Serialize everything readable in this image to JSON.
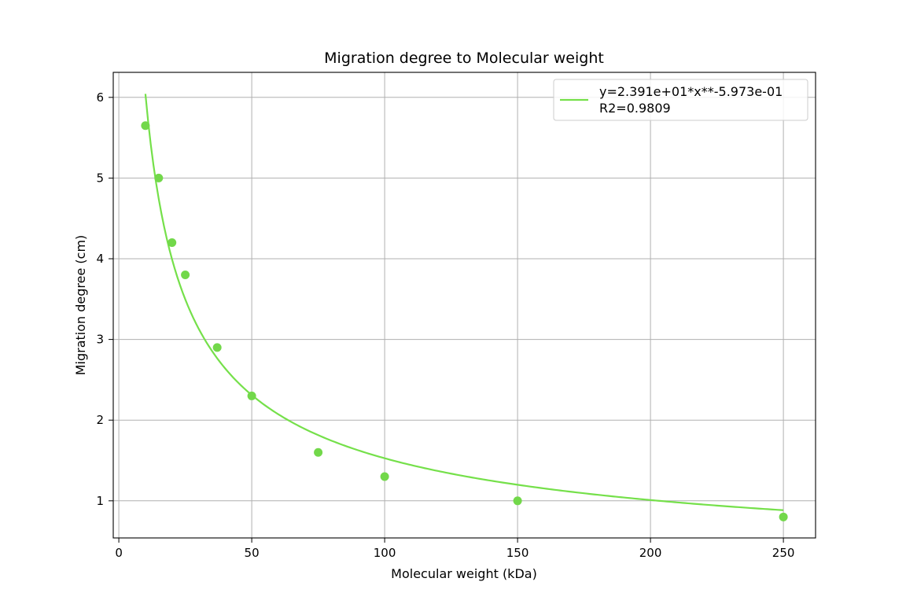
{
  "chart_data": {
    "type": "scatter",
    "title": "Migration degree to Molecular weight",
    "xlabel": "Molecular weight (kDa)",
    "ylabel": "Migration degree (cm)",
    "xlim": [
      -2.1,
      262.1
    ],
    "ylim": [
      0.54,
      6.31
    ],
    "xticks": [
      0,
      50,
      100,
      150,
      200,
      250
    ],
    "yticks": [
      1,
      2,
      3,
      4,
      5,
      6
    ],
    "grid": true,
    "legend_position": "top-right",
    "colors": {
      "fit_line": "#75e04a",
      "points": "#72d84a"
    },
    "series": [
      {
        "kind": "points",
        "x": [
          10,
          15,
          20,
          25,
          37,
          50,
          75,
          100,
          150,
          250
        ],
        "y": [
          5.65,
          5.0,
          4.2,
          3.8,
          2.9,
          2.3,
          1.6,
          1.3,
          1.0,
          0.8
        ]
      },
      {
        "kind": "fit",
        "name": "y=2.391e+01*x**-5.973e-01\nR2=0.9809",
        "coefficient": 23.91,
        "exponent": -0.5973,
        "x_range": [
          10,
          250
        ]
      }
    ],
    "legend": [
      "y=2.391e+01*x**-5.973e-01",
      "R2=0.9809"
    ]
  }
}
